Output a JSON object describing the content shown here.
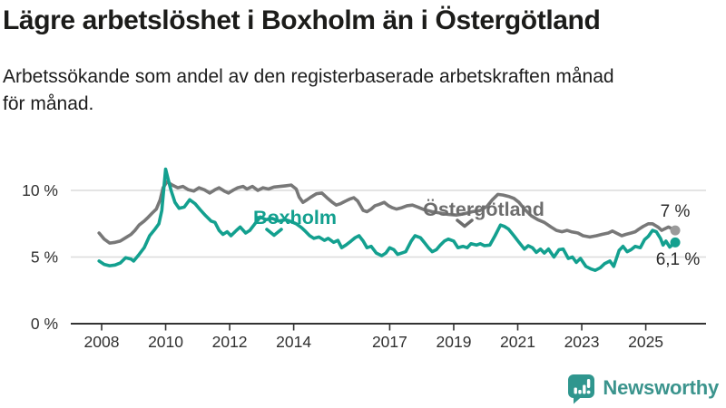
{
  "header": {
    "title": "Lägre arbetslöshet i Boxholm än i Östergötland",
    "subtitle_line1": "Arbetssökande som andel av den registerbaserade arbetskraften månad",
    "subtitle_line2": "för månad."
  },
  "chart_data": {
    "type": "line",
    "title": "Lägre arbetslöshet i Boxholm än i Östergötland",
    "subtitle": "Arbetssökande som andel av den registerbaserade arbetskraften månad för månad.",
    "ylabel": "",
    "xlabel": "",
    "grid": "horizontal",
    "y_ticks": [
      {
        "v": 0,
        "label": "0 %"
      },
      {
        "v": 5,
        "label": "5 %"
      },
      {
        "v": 10,
        "label": "10 %"
      }
    ],
    "x_ticks": [
      {
        "t": 2008,
        "label": "2008"
      },
      {
        "t": 2010,
        "label": "2010"
      },
      {
        "t": 2012,
        "label": "2012"
      },
      {
        "t": 2014,
        "label": "2014"
      },
      {
        "t": 2017,
        "label": "2017"
      },
      {
        "t": 2019,
        "label": "2019"
      },
      {
        "t": 2021,
        "label": "2021"
      },
      {
        "t": 2023,
        "label": "2023"
      },
      {
        "t": 2025,
        "label": "2025"
      }
    ],
    "x_range": [
      2007.0,
      2026.9
    ],
    "y_range": [
      0,
      12.2
    ],
    "colors": {
      "grid": "#dcdcdc",
      "axis": "#333333",
      "tick_text": "#303030",
      "value_text": "#2b2b2b"
    },
    "series": [
      {
        "name": "Östergötland",
        "color": "#787878",
        "label_color": "#6d6d6d",
        "end_label": "7 %",
        "end_value": 7.0,
        "end_dot_color": "#9a9a9a",
        "points": [
          [
            2007.92,
            6.8
          ],
          [
            2008.08,
            6.35
          ],
          [
            2008.25,
            6.05
          ],
          [
            2008.42,
            6.1
          ],
          [
            2008.58,
            6.2
          ],
          [
            2008.75,
            6.45
          ],
          [
            2008.92,
            6.7
          ],
          [
            2009.04,
            7.0
          ],
          [
            2009.17,
            7.4
          ],
          [
            2009.33,
            7.7
          ],
          [
            2009.46,
            8.0
          ],
          [
            2009.58,
            8.3
          ],
          [
            2009.71,
            8.6
          ],
          [
            2009.83,
            9.3
          ],
          [
            2009.92,
            10.2
          ],
          [
            2010.04,
            10.65
          ],
          [
            2010.21,
            10.4
          ],
          [
            2010.38,
            10.2
          ],
          [
            2010.54,
            10.3
          ],
          [
            2010.71,
            10.05
          ],
          [
            2010.88,
            9.95
          ],
          [
            2011.04,
            10.2
          ],
          [
            2011.21,
            10.05
          ],
          [
            2011.38,
            9.8
          ],
          [
            2011.54,
            10.05
          ],
          [
            2011.67,
            10.2
          ],
          [
            2011.83,
            9.95
          ],
          [
            2011.96,
            9.8
          ],
          [
            2012.13,
            10.05
          ],
          [
            2012.25,
            10.2
          ],
          [
            2012.42,
            10.3
          ],
          [
            2012.54,
            10.1
          ],
          [
            2012.71,
            10.3
          ],
          [
            2012.88,
            10.0
          ],
          [
            2013.04,
            10.2
          ],
          [
            2013.21,
            10.1
          ],
          [
            2013.38,
            10.25
          ],
          [
            2013.58,
            10.3
          ],
          [
            2013.75,
            10.35
          ],
          [
            2013.92,
            10.4
          ],
          [
            2014.08,
            10.1
          ],
          [
            2014.17,
            9.5
          ],
          [
            2014.29,
            9.1
          ],
          [
            2014.42,
            9.3
          ],
          [
            2014.54,
            9.5
          ],
          [
            2014.71,
            9.75
          ],
          [
            2014.88,
            9.8
          ],
          [
            2015.04,
            9.45
          ],
          [
            2015.21,
            9.1
          ],
          [
            2015.33,
            8.9
          ],
          [
            2015.46,
            9.0
          ],
          [
            2015.58,
            9.15
          ],
          [
            2015.75,
            9.35
          ],
          [
            2015.88,
            9.45
          ],
          [
            2016.0,
            9.2
          ],
          [
            2016.17,
            8.5
          ],
          [
            2016.29,
            8.4
          ],
          [
            2016.42,
            8.6
          ],
          [
            2016.54,
            8.85
          ],
          [
            2016.67,
            8.95
          ],
          [
            2016.83,
            9.1
          ],
          [
            2016.96,
            8.85
          ],
          [
            2017.08,
            8.7
          ],
          [
            2017.21,
            8.6
          ],
          [
            2017.38,
            8.7
          ],
          [
            2017.54,
            8.85
          ],
          [
            2017.71,
            8.9
          ],
          [
            2017.88,
            8.75
          ],
          [
            2018.08,
            8.55
          ],
          [
            2018.33,
            8.4
          ],
          [
            2018.58,
            8.3
          ],
          [
            2018.83,
            8.2
          ],
          [
            2019.08,
            8.15
          ],
          [
            2019.33,
            8.25
          ],
          [
            2019.58,
            8.4
          ],
          [
            2019.83,
            8.5
          ],
          [
            2020.04,
            8.8
          ],
          [
            2020.21,
            9.3
          ],
          [
            2020.38,
            9.7
          ],
          [
            2020.54,
            9.65
          ],
          [
            2020.71,
            9.55
          ],
          [
            2020.88,
            9.4
          ],
          [
            2021.04,
            9.1
          ],
          [
            2021.21,
            8.6
          ],
          [
            2021.42,
            8.1
          ],
          [
            2021.63,
            7.8
          ],
          [
            2021.83,
            7.6
          ],
          [
            2022.04,
            7.25
          ],
          [
            2022.21,
            7.0
          ],
          [
            2022.38,
            6.9
          ],
          [
            2022.54,
            7.0
          ],
          [
            2022.67,
            6.9
          ],
          [
            2022.88,
            6.8
          ],
          [
            2023.04,
            6.6
          ],
          [
            2023.25,
            6.5
          ],
          [
            2023.46,
            6.6
          ],
          [
            2023.63,
            6.7
          ],
          [
            2023.83,
            6.8
          ],
          [
            2023.96,
            6.95
          ],
          [
            2024.08,
            6.8
          ],
          [
            2024.25,
            6.6
          ],
          [
            2024.38,
            6.7
          ],
          [
            2024.54,
            6.8
          ],
          [
            2024.67,
            6.9
          ],
          [
            2024.79,
            7.1
          ],
          [
            2024.92,
            7.3
          ],
          [
            2025.08,
            7.5
          ],
          [
            2025.21,
            7.5
          ],
          [
            2025.38,
            7.25
          ],
          [
            2025.5,
            7.0
          ],
          [
            2025.58,
            7.1
          ],
          [
            2025.71,
            7.25
          ],
          [
            2025.92,
            7.0
          ]
        ]
      },
      {
        "name": "Boxholm",
        "color": "#13a08f",
        "label_color": "#13a08f",
        "end_label": "6,1 %",
        "end_value": 6.1,
        "end_dot_color": "#13a08f",
        "points": [
          [
            2007.92,
            4.7
          ],
          [
            2008.08,
            4.45
          ],
          [
            2008.25,
            4.35
          ],
          [
            2008.42,
            4.4
          ],
          [
            2008.58,
            4.55
          ],
          [
            2008.75,
            4.95
          ],
          [
            2008.92,
            4.85
          ],
          [
            2009.0,
            4.7
          ],
          [
            2009.17,
            5.2
          ],
          [
            2009.33,
            5.7
          ],
          [
            2009.5,
            6.6
          ],
          [
            2009.67,
            7.1
          ],
          [
            2009.79,
            7.5
          ],
          [
            2009.88,
            8.5
          ],
          [
            2010.0,
            11.6
          ],
          [
            2010.08,
            10.8
          ],
          [
            2010.17,
            10.0
          ],
          [
            2010.29,
            9.1
          ],
          [
            2010.42,
            8.65
          ],
          [
            2010.58,
            8.75
          ],
          [
            2010.75,
            9.3
          ],
          [
            2010.92,
            9.0
          ],
          [
            2011.08,
            8.55
          ],
          [
            2011.25,
            8.1
          ],
          [
            2011.42,
            7.7
          ],
          [
            2011.54,
            7.6
          ],
          [
            2011.67,
            7.0
          ],
          [
            2011.79,
            6.7
          ],
          [
            2011.92,
            6.9
          ],
          [
            2012.04,
            6.6
          ],
          [
            2012.21,
            7.0
          ],
          [
            2012.33,
            7.25
          ],
          [
            2012.5,
            6.8
          ],
          [
            2012.63,
            7.0
          ],
          [
            2012.79,
            7.5
          ],
          [
            2012.96,
            8.0
          ],
          [
            2013.13,
            7.8
          ],
          [
            2013.33,
            7.9
          ],
          [
            2013.54,
            7.7
          ],
          [
            2013.75,
            7.8
          ],
          [
            2013.92,
            7.65
          ],
          [
            2014.08,
            7.5
          ],
          [
            2014.25,
            7.2
          ],
          [
            2014.38,
            6.9
          ],
          [
            2014.5,
            6.6
          ],
          [
            2014.63,
            6.4
          ],
          [
            2014.79,
            6.5
          ],
          [
            2014.96,
            6.25
          ],
          [
            2015.08,
            6.4
          ],
          [
            2015.25,
            6.1
          ],
          [
            2015.38,
            6.25
          ],
          [
            2015.5,
            5.7
          ],
          [
            2015.63,
            5.9
          ],
          [
            2015.79,
            6.2
          ],
          [
            2015.92,
            6.45
          ],
          [
            2016.04,
            6.6
          ],
          [
            2016.17,
            6.2
          ],
          [
            2016.29,
            5.7
          ],
          [
            2016.42,
            5.8
          ],
          [
            2016.58,
            5.3
          ],
          [
            2016.75,
            5.1
          ],
          [
            2016.88,
            5.3
          ],
          [
            2017.0,
            5.7
          ],
          [
            2017.13,
            5.55
          ],
          [
            2017.25,
            5.2
          ],
          [
            2017.38,
            5.3
          ],
          [
            2017.5,
            5.4
          ],
          [
            2017.67,
            6.2
          ],
          [
            2017.79,
            6.6
          ],
          [
            2017.96,
            6.45
          ],
          [
            2018.08,
            6.1
          ],
          [
            2018.21,
            5.7
          ],
          [
            2018.33,
            5.4
          ],
          [
            2018.46,
            5.55
          ],
          [
            2018.58,
            5.9
          ],
          [
            2018.71,
            6.2
          ],
          [
            2018.83,
            6.35
          ],
          [
            2019.0,
            6.2
          ],
          [
            2019.13,
            5.7
          ],
          [
            2019.29,
            5.8
          ],
          [
            2019.42,
            5.7
          ],
          [
            2019.54,
            6.0
          ],
          [
            2019.71,
            5.9
          ],
          [
            2019.83,
            6.0
          ],
          [
            2019.96,
            5.85
          ],
          [
            2020.13,
            5.9
          ],
          [
            2020.29,
            6.6
          ],
          [
            2020.46,
            7.4
          ],
          [
            2020.58,
            7.3
          ],
          [
            2020.71,
            7.1
          ],
          [
            2020.88,
            6.6
          ],
          [
            2021.04,
            6.1
          ],
          [
            2021.21,
            5.6
          ],
          [
            2021.33,
            5.85
          ],
          [
            2021.46,
            5.7
          ],
          [
            2021.58,
            5.35
          ],
          [
            2021.71,
            5.6
          ],
          [
            2021.83,
            5.3
          ],
          [
            2021.96,
            5.6
          ],
          [
            2022.13,
            5.0
          ],
          [
            2022.29,
            5.55
          ],
          [
            2022.42,
            5.6
          ],
          [
            2022.58,
            4.9
          ],
          [
            2022.71,
            5.0
          ],
          [
            2022.83,
            4.6
          ],
          [
            2022.96,
            4.9
          ],
          [
            2023.13,
            4.3
          ],
          [
            2023.29,
            4.1
          ],
          [
            2023.42,
            4.0
          ],
          [
            2023.58,
            4.2
          ],
          [
            2023.71,
            4.5
          ],
          [
            2023.88,
            4.7
          ],
          [
            2024.0,
            4.3
          ],
          [
            2024.17,
            5.5
          ],
          [
            2024.29,
            5.8
          ],
          [
            2024.42,
            5.4
          ],
          [
            2024.54,
            5.55
          ],
          [
            2024.67,
            5.8
          ],
          [
            2024.83,
            5.7
          ],
          [
            2024.96,
            6.3
          ],
          [
            2025.08,
            6.55
          ],
          [
            2025.21,
            7.0
          ],
          [
            2025.33,
            6.9
          ],
          [
            2025.46,
            6.4
          ],
          [
            2025.54,
            5.9
          ],
          [
            2025.63,
            6.2
          ],
          [
            2025.75,
            5.75
          ],
          [
            2025.92,
            6.1
          ]
        ]
      }
    ]
  },
  "branding": {
    "wordmark": "Newsworthy",
    "icon": "newsworthy-chart-bubble-icon",
    "color": "#3b948d",
    "icon_color": "#2f968e"
  }
}
